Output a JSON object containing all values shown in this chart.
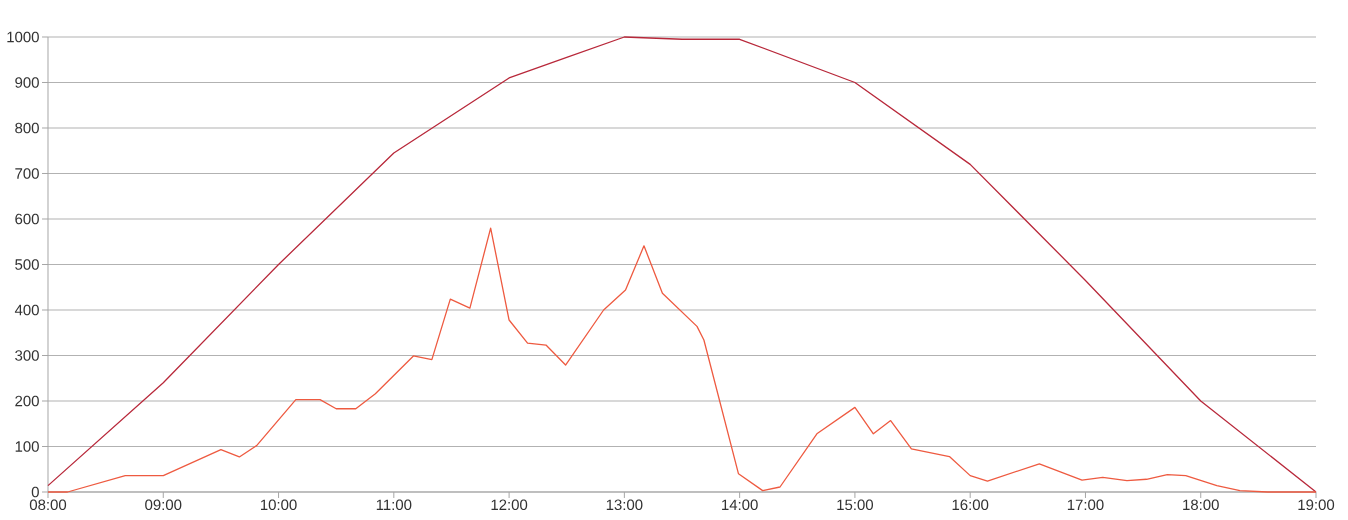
{
  "chart_data": {
    "type": "line",
    "xlim": [
      8,
      19
    ],
    "ylim": [
      0,
      1000
    ],
    "xticks": [
      {
        "value": 8,
        "label": "08:00"
      },
      {
        "value": 9,
        "label": "09:00"
      },
      {
        "value": 10,
        "label": "10:00"
      },
      {
        "value": 11,
        "label": "11:00"
      },
      {
        "value": 12,
        "label": "12:00"
      },
      {
        "value": 13,
        "label": "13:00"
      },
      {
        "value": 14,
        "label": "14:00"
      },
      {
        "value": 15,
        "label": "15:00"
      },
      {
        "value": 16,
        "label": "16:00"
      },
      {
        "value": 17,
        "label": "17:00"
      },
      {
        "value": 18,
        "label": "18:00"
      },
      {
        "value": 19,
        "label": "19:00"
      }
    ],
    "yticks": [
      0,
      100,
      200,
      300,
      400,
      500,
      600,
      700,
      800,
      900,
      1000
    ],
    "grid": "y",
    "marker": "none",
    "series": [
      {
        "color": "#b8283a",
        "x": [
          8,
          9,
          10,
          11,
          12,
          12.5,
          13,
          13.5,
          14,
          15,
          16,
          17,
          18,
          19
        ],
        "values": [
          14,
          240,
          500,
          745,
          910,
          955,
          1000,
          995,
          995,
          900,
          720,
          465,
          200,
          0
        ]
      },
      {
        "color": "#ee5a40",
        "x": [
          8,
          8.17,
          8.67,
          9.0,
          9.5,
          9.66,
          9.81,
          10.15,
          10.36,
          10.5,
          10.67,
          10.84,
          11.17,
          11.33,
          11.49,
          11.66,
          11.84,
          12.0,
          12.16,
          12.32,
          12.49,
          12.82,
          13.01,
          13.17,
          13.33,
          13.63,
          13.69,
          13.99,
          14.2,
          14.35,
          14.67,
          15.0,
          15.16,
          15.31,
          15.49,
          15.82,
          16.0,
          16.15,
          16.6,
          16.97,
          17.15,
          17.36,
          17.53,
          17.71,
          17.87,
          18.14,
          18.34,
          18.58,
          19
        ],
        "values": [
          0,
          0,
          36,
          36,
          93,
          77,
          102,
          203,
          203,
          183,
          183,
          216,
          299,
          291,
          424,
          404,
          580,
          378,
          327,
          323,
          279,
          400,
          444,
          541,
          437,
          364,
          334,
          40,
          3,
          11,
          128,
          186,
          128,
          157,
          95,
          78,
          36,
          24,
          62,
          26,
          32,
          25,
          28,
          38,
          36,
          14,
          3,
          0,
          0
        ]
      }
    ]
  }
}
